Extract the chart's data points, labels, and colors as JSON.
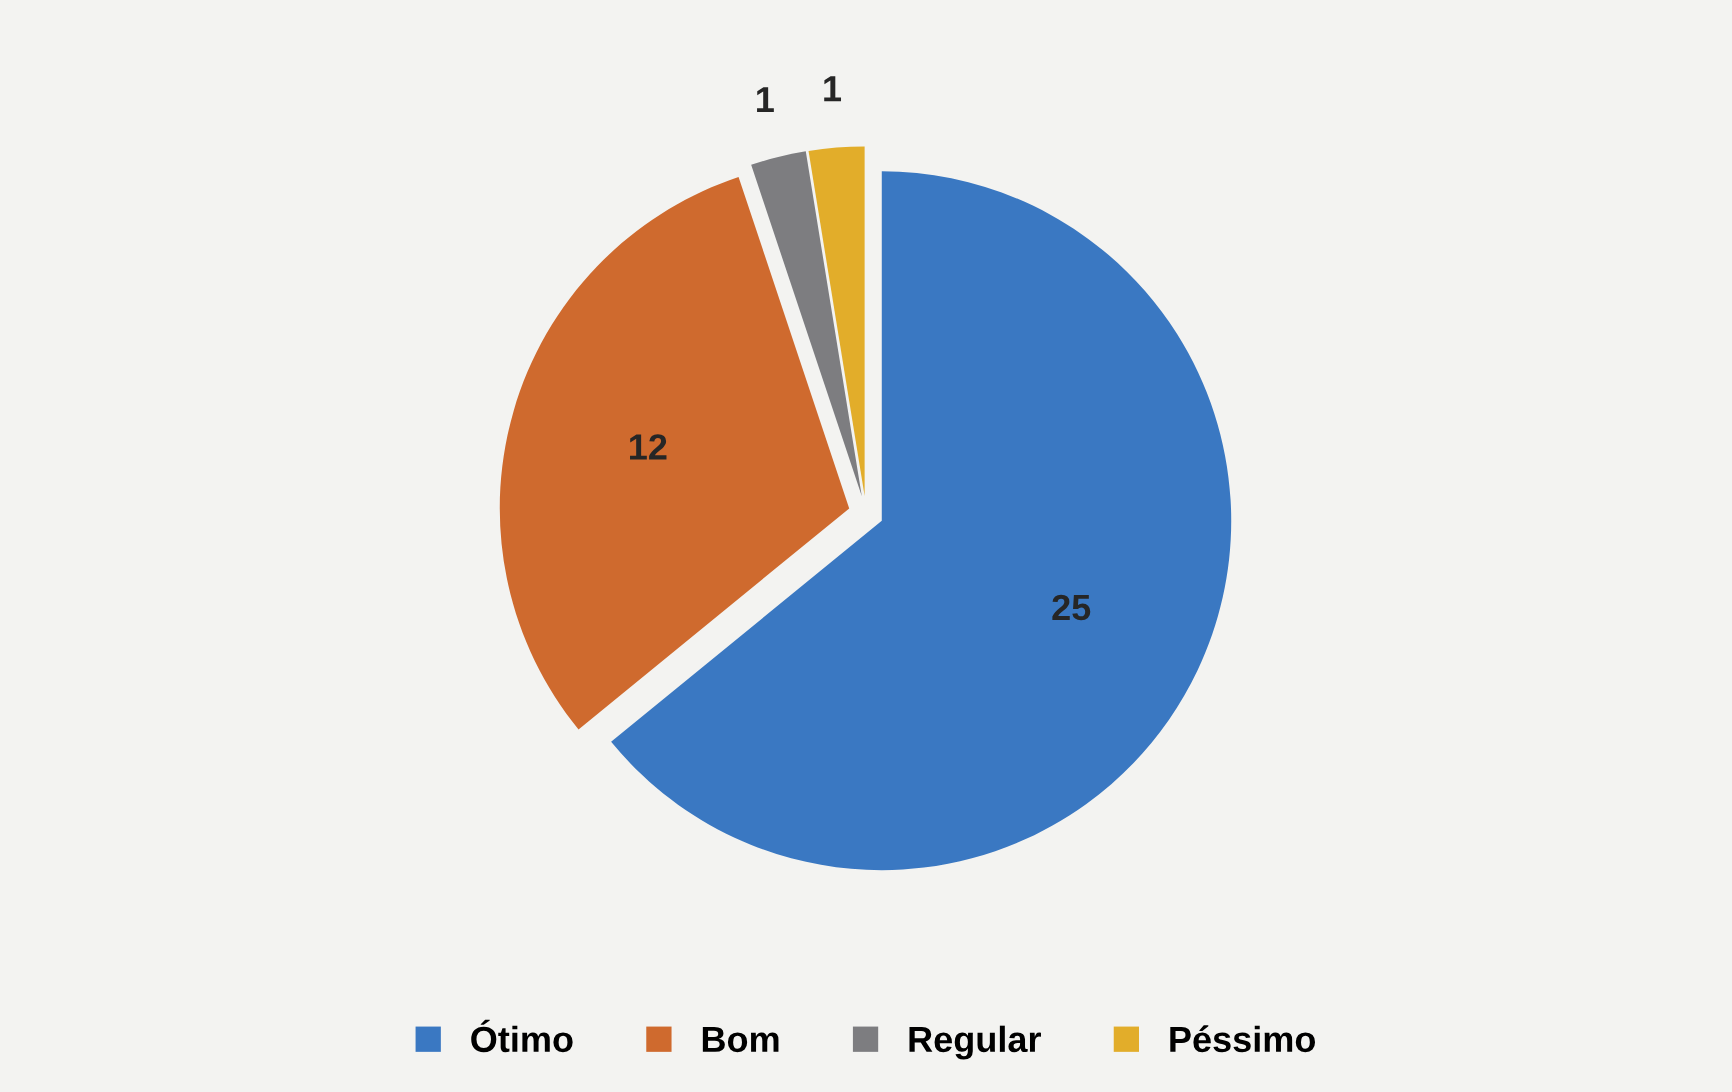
{
  "chart_data": {
    "type": "pie",
    "categories": [
      "Ótimo",
      "Bom",
      "Regular",
      "Péssimo"
    ],
    "values": [
      25,
      12,
      1,
      1
    ],
    "colors": [
      "#3a78c2",
      "#cf6a2e",
      "#7d7d80",
      "#e2ad2a"
    ],
    "data_labels": true,
    "legend": "bottom"
  }
}
